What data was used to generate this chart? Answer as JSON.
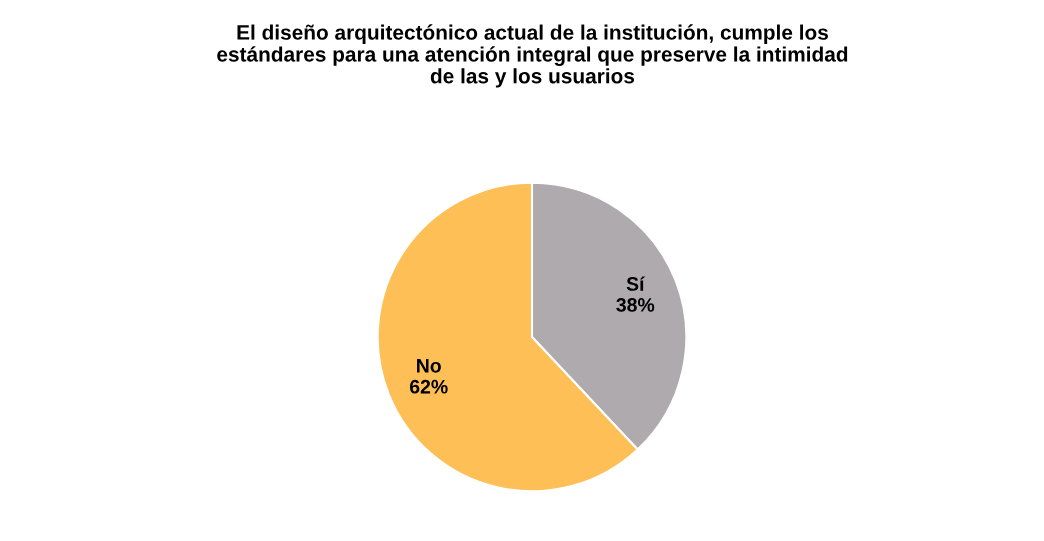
{
  "chart_data": {
    "type": "pie",
    "title": "El diseño arquitectónico actual de la institución, cumple los\nestándares para una atención integral que preserve la intimidad\nde las y los usuarios",
    "categories": [
      "Sí",
      "No"
    ],
    "values": [
      38,
      62
    ],
    "colors": [
      "#aeaaad",
      "#fdbf56"
    ],
    "value_labels": [
      "38%",
      "62%"
    ],
    "legend": false
  }
}
